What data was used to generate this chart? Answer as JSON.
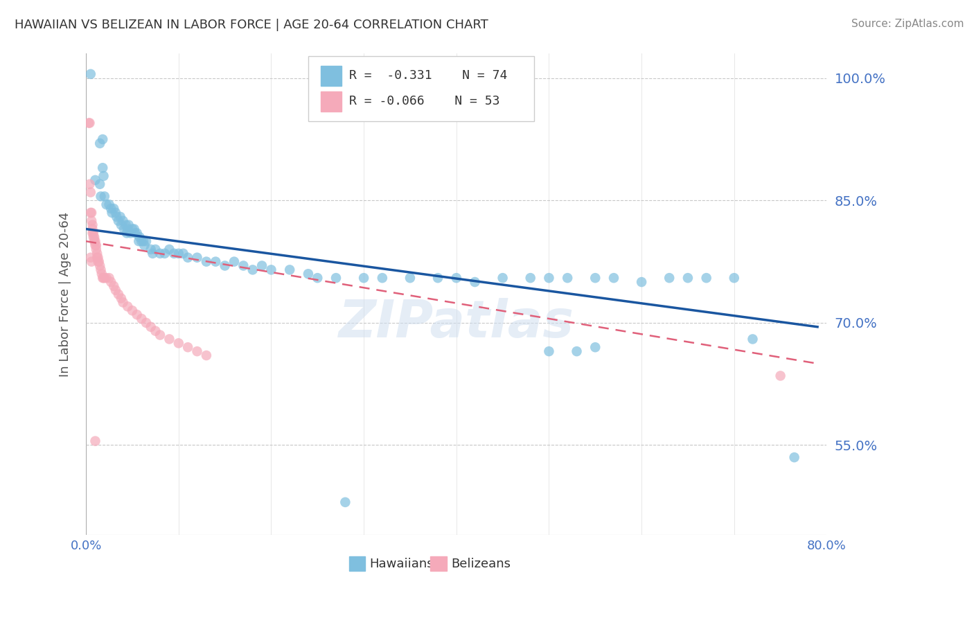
{
  "title": "HAWAIIAN VS BELIZEAN IN LABOR FORCE | AGE 20-64 CORRELATION CHART",
  "source": "Source: ZipAtlas.com",
  "ylabel": "In Labor Force | Age 20-64",
  "xlim": [
    0.0,
    0.8
  ],
  "ylim": [
    0.44,
    1.03
  ],
  "yticks": [
    0.55,
    0.7,
    0.85,
    1.0
  ],
  "ytick_labels": [
    "55.0%",
    "70.0%",
    "85.0%",
    "100.0%"
  ],
  "xticks": [
    0.0,
    0.1,
    0.2,
    0.3,
    0.4,
    0.5,
    0.6,
    0.7,
    0.8
  ],
  "xtick_labels": [
    "0.0%",
    "",
    "",
    "",
    "",
    "",
    "",
    "",
    "80.0%"
  ],
  "blue_color": "#7fbfdf",
  "pink_color": "#f5aaba",
  "trend_blue_color": "#1a56a0",
  "trend_pink_color": "#e0607a",
  "axis_label_color": "#4472c4",
  "title_color": "#333333",
  "grid_color": "#c8c8c8",
  "blue_scatter": [
    [
      0.005,
      1.005
    ],
    [
      0.01,
      0.875
    ],
    [
      0.015,
      0.87
    ],
    [
      0.016,
      0.855
    ],
    [
      0.02,
      0.855
    ],
    [
      0.022,
      0.845
    ],
    [
      0.025,
      0.845
    ],
    [
      0.027,
      0.84
    ],
    [
      0.028,
      0.835
    ],
    [
      0.03,
      0.84
    ],
    [
      0.032,
      0.835
    ],
    [
      0.033,
      0.83
    ],
    [
      0.035,
      0.825
    ],
    [
      0.037,
      0.83
    ],
    [
      0.038,
      0.82
    ],
    [
      0.04,
      0.825
    ],
    [
      0.041,
      0.815
    ],
    [
      0.043,
      0.82
    ],
    [
      0.044,
      0.81
    ],
    [
      0.045,
      0.815
    ],
    [
      0.046,
      0.82
    ],
    [
      0.048,
      0.81
    ],
    [
      0.05,
      0.815
    ],
    [
      0.052,
      0.815
    ],
    [
      0.053,
      0.81
    ],
    [
      0.055,
      0.81
    ],
    [
      0.057,
      0.8
    ],
    [
      0.058,
      0.805
    ],
    [
      0.06,
      0.8
    ],
    [
      0.062,
      0.8
    ],
    [
      0.063,
      0.795
    ],
    [
      0.065,
      0.8
    ],
    [
      0.018,
      0.89
    ],
    [
      0.019,
      0.88
    ],
    [
      0.015,
      0.92
    ],
    [
      0.018,
      0.925
    ],
    [
      0.07,
      0.79
    ],
    [
      0.072,
      0.785
    ],
    [
      0.075,
      0.79
    ],
    [
      0.08,
      0.785
    ],
    [
      0.085,
      0.785
    ],
    [
      0.09,
      0.79
    ],
    [
      0.095,
      0.785
    ],
    [
      0.1,
      0.785
    ],
    [
      0.105,
      0.785
    ],
    [
      0.11,
      0.78
    ],
    [
      0.12,
      0.78
    ],
    [
      0.13,
      0.775
    ],
    [
      0.14,
      0.775
    ],
    [
      0.15,
      0.77
    ],
    [
      0.16,
      0.775
    ],
    [
      0.17,
      0.77
    ],
    [
      0.18,
      0.765
    ],
    [
      0.19,
      0.77
    ],
    [
      0.2,
      0.765
    ],
    [
      0.22,
      0.765
    ],
    [
      0.24,
      0.76
    ],
    [
      0.25,
      0.755
    ],
    [
      0.27,
      0.755
    ],
    [
      0.3,
      0.755
    ],
    [
      0.32,
      0.755
    ],
    [
      0.35,
      0.755
    ],
    [
      0.38,
      0.755
    ],
    [
      0.4,
      0.755
    ],
    [
      0.42,
      0.75
    ],
    [
      0.45,
      0.755
    ],
    [
      0.48,
      0.755
    ],
    [
      0.5,
      0.755
    ],
    [
      0.52,
      0.755
    ],
    [
      0.55,
      0.755
    ],
    [
      0.57,
      0.755
    ],
    [
      0.6,
      0.75
    ],
    [
      0.63,
      0.755
    ],
    [
      0.65,
      0.755
    ],
    [
      0.67,
      0.755
    ],
    [
      0.7,
      0.755
    ],
    [
      0.72,
      0.68
    ],
    [
      0.765,
      0.535
    ],
    [
      0.28,
      0.48
    ],
    [
      0.5,
      0.665
    ],
    [
      0.53,
      0.665
    ],
    [
      0.55,
      0.67
    ]
  ],
  "pink_scatter": [
    [
      0.003,
      0.945
    ],
    [
      0.004,
      0.945
    ],
    [
      0.004,
      0.87
    ],
    [
      0.005,
      0.86
    ],
    [
      0.005,
      0.835
    ],
    [
      0.006,
      0.835
    ],
    [
      0.006,
      0.825
    ],
    [
      0.007,
      0.82
    ],
    [
      0.007,
      0.815
    ],
    [
      0.007,
      0.81
    ],
    [
      0.008,
      0.81
    ],
    [
      0.008,
      0.805
    ],
    [
      0.009,
      0.805
    ],
    [
      0.009,
      0.8
    ],
    [
      0.01,
      0.8
    ],
    [
      0.01,
      0.795
    ],
    [
      0.011,
      0.795
    ],
    [
      0.011,
      0.79
    ],
    [
      0.012,
      0.785
    ],
    [
      0.012,
      0.78
    ],
    [
      0.013,
      0.78
    ],
    [
      0.013,
      0.775
    ],
    [
      0.014,
      0.775
    ],
    [
      0.015,
      0.77
    ],
    [
      0.016,
      0.765
    ],
    [
      0.017,
      0.76
    ],
    [
      0.018,
      0.755
    ],
    [
      0.019,
      0.755
    ],
    [
      0.02,
      0.755
    ],
    [
      0.022,
      0.755
    ],
    [
      0.005,
      0.78
    ],
    [
      0.006,
      0.775
    ],
    [
      0.025,
      0.755
    ],
    [
      0.027,
      0.75
    ],
    [
      0.03,
      0.745
    ],
    [
      0.032,
      0.74
    ],
    [
      0.035,
      0.735
    ],
    [
      0.038,
      0.73
    ],
    [
      0.04,
      0.725
    ],
    [
      0.045,
      0.72
    ],
    [
      0.05,
      0.715
    ],
    [
      0.055,
      0.71
    ],
    [
      0.06,
      0.705
    ],
    [
      0.065,
      0.7
    ],
    [
      0.07,
      0.695
    ],
    [
      0.075,
      0.69
    ],
    [
      0.08,
      0.685
    ],
    [
      0.09,
      0.68
    ],
    [
      0.1,
      0.675
    ],
    [
      0.11,
      0.67
    ],
    [
      0.12,
      0.665
    ],
    [
      0.13,
      0.66
    ],
    [
      0.75,
      0.635
    ],
    [
      0.01,
      0.555
    ]
  ]
}
